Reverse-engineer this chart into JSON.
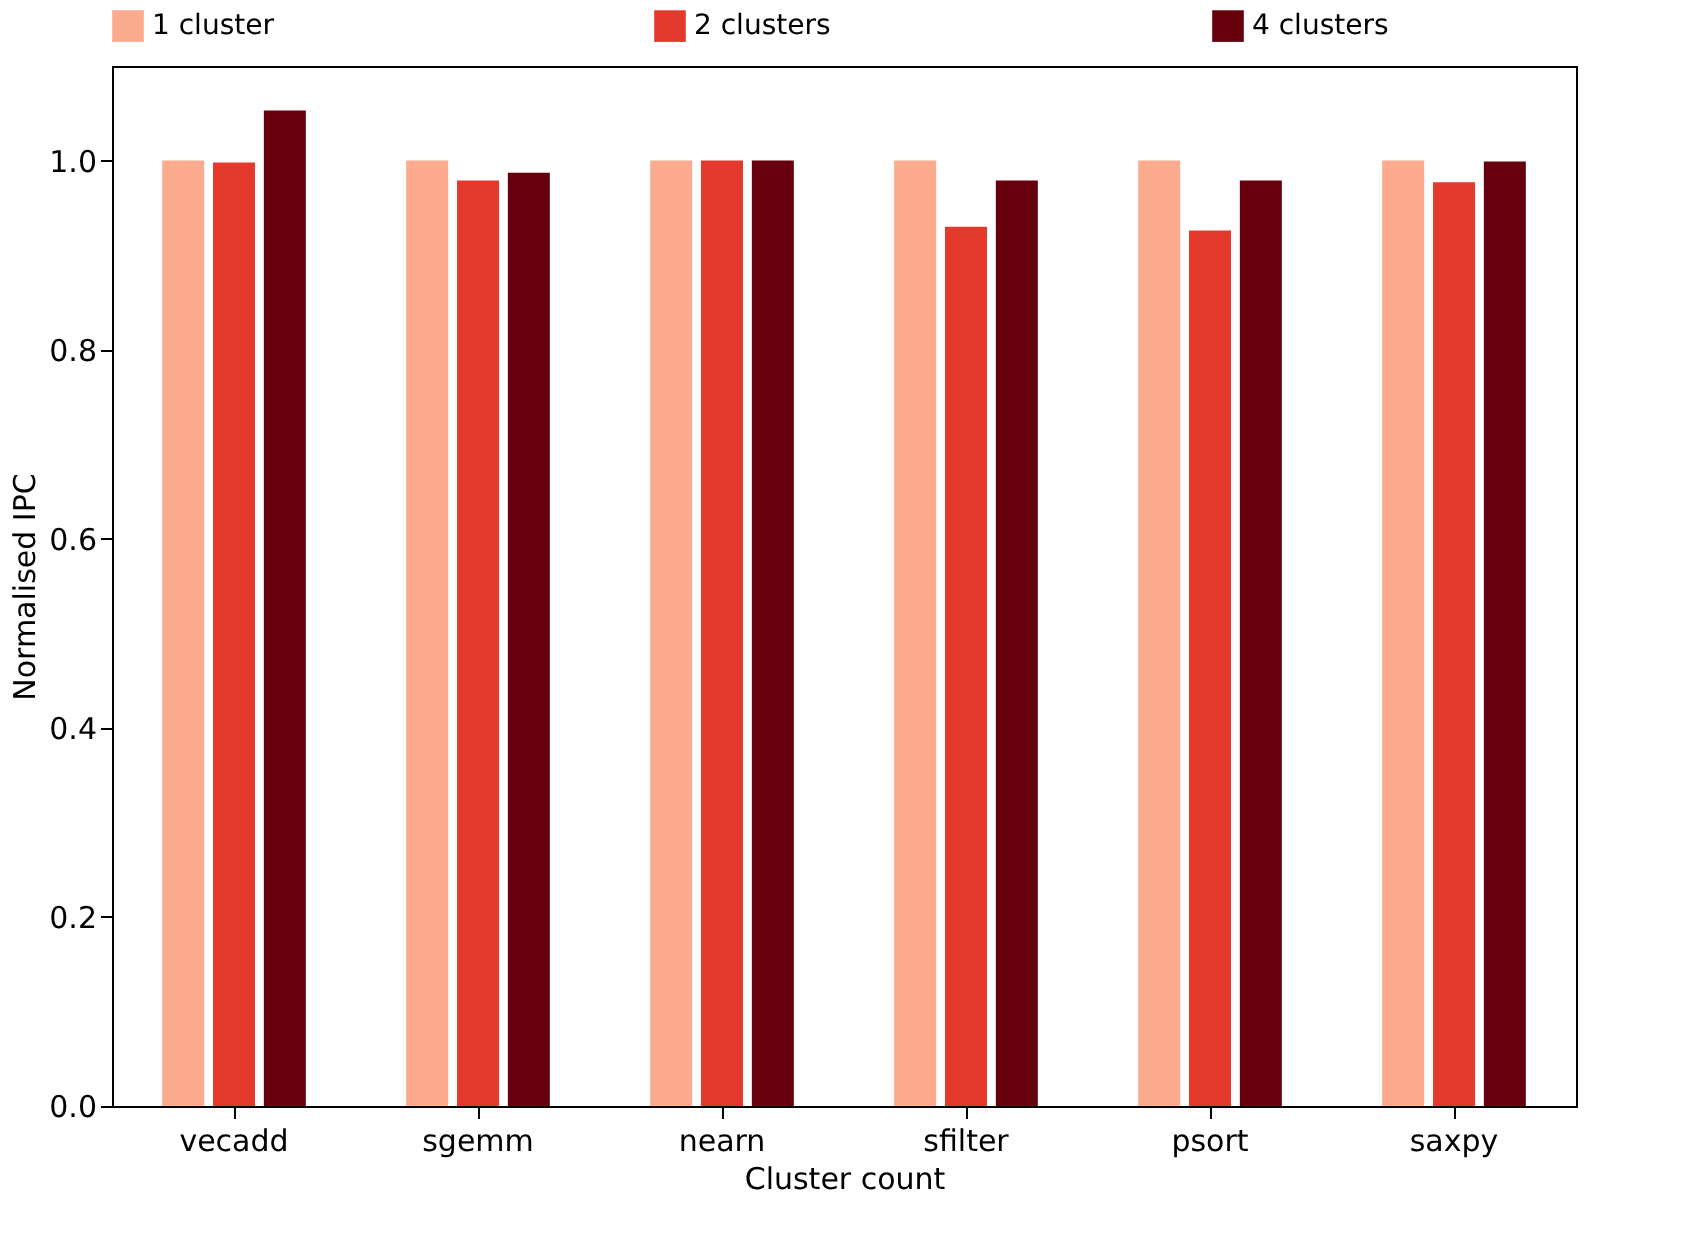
{
  "chart_data": {
    "type": "bar",
    "xlabel": "Cluster count",
    "ylabel": "Normalised IPC",
    "categories": [
      "vecadd",
      "sgemm",
      "nearn",
      "sfilter",
      "psort",
      "saxpy"
    ],
    "series": [
      {
        "name": "1 cluster",
        "color": "#fcab8f",
        "values": [
          1.0,
          1.0,
          1.0,
          1.0,
          1.0,
          1.0
        ]
      },
      {
        "name": "2 clusters",
        "color": "#e43a2e",
        "values": [
          0.998,
          0.979,
          1.0,
          0.93,
          0.926,
          0.977
        ]
      },
      {
        "name": "4 clusters",
        "color": "#67000d",
        "values": [
          1.053,
          0.987,
          1.0,
          0.979,
          0.979,
          0.999
        ]
      }
    ],
    "ylim": [
      0,
      1.1
    ],
    "yticks": [
      {
        "value": 0,
        "label": "0.0"
      },
      {
        "value": 0.2,
        "label": "0.2"
      },
      {
        "value": 0.4,
        "label": "0.4"
      },
      {
        "value": 0.6,
        "label": "0.6"
      },
      {
        "value": 0.8,
        "label": "0.8"
      },
      {
        "value": 1.0,
        "label": "1.0"
      }
    ],
    "grid": false,
    "legend": "top"
  }
}
